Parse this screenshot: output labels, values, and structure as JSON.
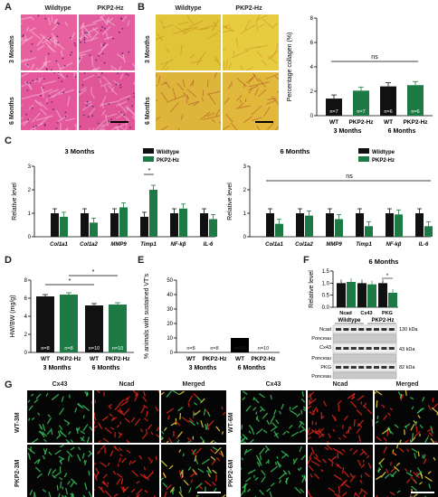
{
  "panel_labels": [
    "A",
    "B",
    "C",
    "D",
    "E",
    "F",
    "G"
  ],
  "panelA": {
    "col1": "Wildtype",
    "col2": "PKP2-Hz",
    "row1": "3 Months",
    "row2": "6 Months"
  },
  "panelB": {
    "col1": "Wildtype",
    "col2": "PKP2-Hz",
    "row1": "3 Months",
    "row2": "6 Months"
  },
  "panelG": {
    "left": {
      "titles": [
        "Cx43",
        "Ncad",
        "Merged"
      ],
      "rows": [
        "WT-3M",
        "PKP2-3M"
      ]
    },
    "right": {
      "titles": [
        "Cx43",
        "Ncad",
        "Merged"
      ],
      "rows": [
        "WT-6M",
        "PKP2-6M"
      ]
    }
  },
  "colors": {
    "wildtype": "#111111",
    "pkp2": "#1e7a45",
    "he_pink": "#e85aa0",
    "collagen_yellow": "#e0c43a",
    "cx43": "#36c25a",
    "ncad": "#e0231a"
  },
  "chart_data": [
    {
      "id": "B-collagen",
      "type": "bar",
      "ylabel": "Percentage collagen (%)",
      "ylim": [
        0,
        8
      ],
      "yticks": [
        "0",
        "2",
        "4",
        "6",
        "8"
      ],
      "categories": [
        "WT",
        "PKP2-Hz",
        "WT",
        "PKP2-Hz"
      ],
      "groups": [
        "3 Months",
        "6 Months"
      ],
      "values": [
        1.4,
        2.05,
        2.4,
        2.5
      ],
      "n_labels": [
        "n=7",
        "n=7",
        "n=6",
        "n=6"
      ],
      "annotation": "ns"
    },
    {
      "id": "C-3M",
      "type": "bar",
      "title": "3 Months",
      "ylabel": "Relative level",
      "ylim": [
        0,
        3
      ],
      "yticks": [
        "0",
        "1",
        "2",
        "3"
      ],
      "categories": [
        "Col1a1",
        "Col1a2",
        "MMP9",
        "Timp1",
        "NF-kβ",
        "IL-6"
      ],
      "series": [
        {
          "name": "Wildtype",
          "values": [
            1.0,
            1.0,
            1.0,
            0.85,
            1.0,
            1.0
          ]
        },
        {
          "name": "PKP2-Hz",
          "values": [
            0.85,
            0.6,
            1.25,
            2.0,
            1.2,
            0.75
          ]
        }
      ],
      "annotation": "*"
    },
    {
      "id": "C-6M",
      "type": "bar",
      "title": "6 Months",
      "ylabel": "Relative level",
      "ylim": [
        0,
        3
      ],
      "yticks": [
        "0",
        "1",
        "2",
        "3"
      ],
      "categories": [
        "Col1a1",
        "Col1a2",
        "MMP9",
        "Timp1",
        "NF-kβ",
        "IL-6"
      ],
      "series": [
        {
          "name": "Wildtype",
          "values": [
            1.0,
            1.0,
            1.0,
            1.0,
            1.0,
            1.0
          ]
        },
        {
          "name": "PKP2-Hz",
          "values": [
            0.55,
            0.9,
            0.75,
            0.45,
            0.95,
            0.45
          ]
        }
      ],
      "annotation": "ns"
    },
    {
      "id": "D-HWBW",
      "type": "bar",
      "ylabel": "HW/BW (mg/g)",
      "ylim": [
        0,
        8
      ],
      "yticks": [
        "0",
        "2",
        "4",
        "6",
        "8"
      ],
      "categories": [
        "WT",
        "PKP2-Hz",
        "WT",
        "PKP2-Hz"
      ],
      "groups": [
        "3 Months",
        "6 Months"
      ],
      "values": [
        6.2,
        6.4,
        5.2,
        5.3
      ],
      "n_labels": [
        "n=8",
        "n=8",
        "n=10",
        "n=10"
      ],
      "annotations": [
        "*",
        "*"
      ]
    },
    {
      "id": "E-VT",
      "type": "bar",
      "ylabel": "% animals with sustained VT's",
      "ylim": [
        0,
        50
      ],
      "yticks": [
        "0",
        "10",
        "20",
        "30",
        "40",
        "50"
      ],
      "categories": [
        "WT",
        "PKP2-Hz",
        "WT",
        "PKP2-Hz"
      ],
      "groups": [
        "3 Months",
        "6 Months"
      ],
      "values": [
        0,
        0,
        10,
        0
      ],
      "n_labels": [
        "n=8",
        "n=8",
        "n=10",
        "n=10"
      ]
    },
    {
      "id": "F-blot-quant",
      "type": "bar",
      "title": "6 Months",
      "ylabel": "Relative level",
      "ylim": [
        0,
        1.5
      ],
      "yticks": [
        "0.0",
        "0.5",
        "1.0",
        "1.5"
      ],
      "categories": [
        "Ncad",
        "Cx43",
        "PKG"
      ],
      "series": [
        {
          "name": "Wildtype",
          "values": [
            1.0,
            1.0,
            1.0
          ]
        },
        {
          "name": "PKP2-Hz",
          "values": [
            1.05,
            0.95,
            0.6
          ]
        }
      ],
      "annotation": "*"
    }
  ],
  "panelF_blot": {
    "groups": [
      "Wildtype",
      "PKP2-Hz"
    ],
    "rows": [
      "Ncad",
      "Ponceau",
      "Cx43",
      "Ponceau",
      "PKG",
      "Ponceau"
    ],
    "kda": [
      "130 kDa",
      "43 kDa",
      "82 kDa"
    ]
  }
}
